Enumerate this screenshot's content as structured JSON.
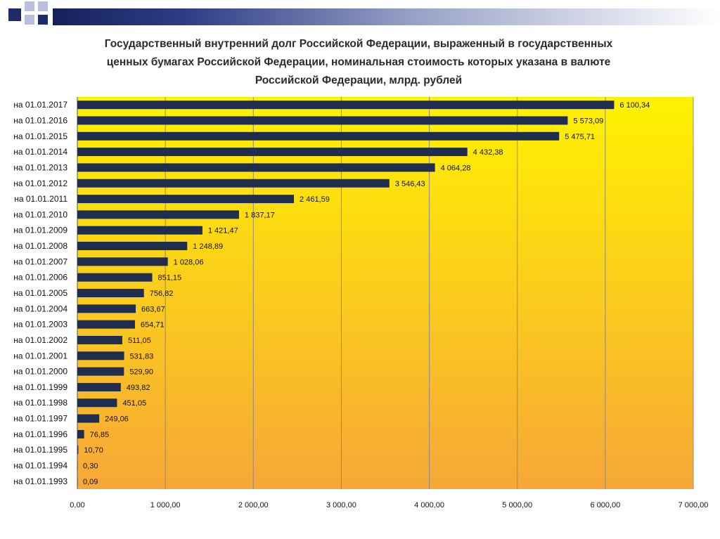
{
  "chart_data": {
    "type": "bar",
    "orientation": "horizontal",
    "title_lines": [
      "Государственный внутренний долг Российской Федерации, выраженный в государственных",
      "ценных бумагах Российской Федерации, номинальная стоимость которых указана в валюте",
      "Российской Федерации, млрд. рублей"
    ],
    "categories": [
      "на 01.01.2017",
      "на 01.01.2016",
      "на 01.01.2015",
      "на 01.01.2014",
      "на 01.01.2013",
      "на 01.01.2012",
      "на 01.01.2011",
      "на 01.01.2010",
      "на 01.01.2009",
      "на 01.01.2008",
      "на 01.01.2007",
      "на 01.01.2006",
      "на 01.01.2005",
      "на 01.01.2004",
      "на 01.01.2003",
      "на 01.01.2002",
      "на 01.01.2001",
      "на 01.01.2000",
      "на 01.01.1999",
      "на 01.01.1998",
      "на 01.01.1997",
      "на 01.01.1996",
      "на 01.01.1995",
      "на 01.01.1994",
      "на 01.01.1993"
    ],
    "values": [
      6100.34,
      5573.09,
      5475.71,
      4432.38,
      4064.28,
      3546.43,
      2461.59,
      1837.17,
      1421.47,
      1248.89,
      1028.06,
      851.15,
      756.82,
      663.67,
      654.71,
      511.05,
      531.83,
      529.9,
      493.82,
      451.05,
      249.06,
      76.85,
      10.7,
      0.3,
      0.09
    ],
    "value_labels": [
      "6 100,34",
      "5 573,09",
      "5 475,71",
      "4 432,38",
      "4 064,28",
      "3 546,43",
      "2 461,59",
      "1 837,17",
      "1 421,47",
      "1 248,89",
      "1 028,06",
      "851,15",
      "756,82",
      "663,67",
      "654,71",
      "511,05",
      "531,83",
      "529,90",
      "493,82",
      "451,05",
      "249,06",
      "76,85",
      "10,70",
      "0,30",
      "0,09"
    ],
    "xlim": [
      0,
      7000
    ],
    "xticks": [
      0,
      1000,
      2000,
      3000,
      4000,
      5000,
      6000,
      7000
    ],
    "xtick_labels": [
      "0,00",
      "1 000,00",
      "2 000,00",
      "3 000,00",
      "4 000,00",
      "5 000,00",
      "6 000,00",
      "7 000,00"
    ],
    "grid": "vertical",
    "legend": "none",
    "colors": {
      "bar": "#1f2d4e",
      "plot_top": "#fff200",
      "plot_bottom": "#f7a738",
      "grid": "#8a8a8a"
    }
  }
}
